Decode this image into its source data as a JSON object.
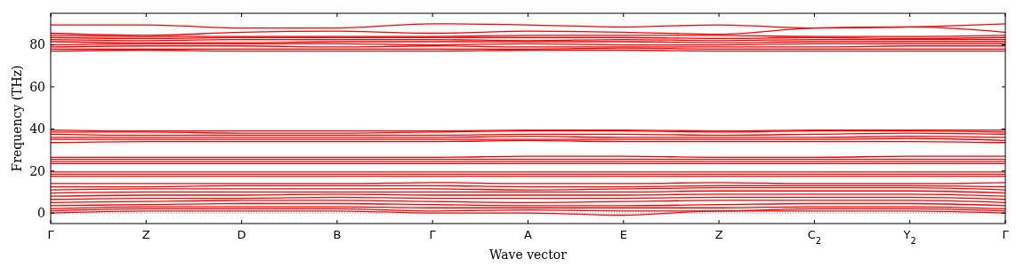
{
  "chart_data": {
    "type": "line",
    "xlabel": "Wave vector",
    "ylabel": "Frequency (THz)",
    "ylim": [
      -5,
      95
    ],
    "categories": [
      "Γ",
      "Z",
      "D",
      "B",
      "Γ",
      "A",
      "E",
      "Z",
      "C$_{2}$",
      "Y$_{2}$",
      "Γ"
    ],
    "yticks": [
      0,
      20,
      40,
      60,
      80
    ],
    "marker": "none",
    "line_style": "solid",
    "ref_lines": [
      {
        "axis": "y",
        "value": 0,
        "color": "#6666ff",
        "line_style": "dotted"
      }
    ],
    "series": [
      {
        "color": "#ff0000",
        "values": [
          0,
          1,
          1,
          1,
          0,
          0,
          -1,
          1,
          1,
          1,
          0
        ]
      },
      {
        "color": "#ff0000",
        "values": [
          1,
          2,
          2,
          2,
          1,
          1.5,
          1,
          1,
          2,
          2,
          1
        ]
      },
      {
        "color": "#ff0000",
        "values": [
          2,
          3,
          3,
          3,
          2.5,
          2.5,
          2.5,
          2.5,
          3,
          3,
          2
        ]
      },
      {
        "color": "#ff0000",
        "values": [
          3.5,
          4,
          4.5,
          4.5,
          4,
          3.5,
          3.5,
          4,
          4.5,
          4.5,
          3.5
        ]
      },
      {
        "color": "#ff0000",
        "values": [
          5,
          5.5,
          6,
          6,
          5.5,
          5,
          5.5,
          6,
          6,
          6,
          5
        ]
      },
      {
        "color": "#ff0000",
        "values": [
          6.5,
          7,
          7,
          7.5,
          7,
          7,
          7,
          7.5,
          7.5,
          7.5,
          6.5
        ]
      },
      {
        "color": "#ff0000",
        "values": [
          8,
          8.5,
          8.5,
          9,
          8.5,
          8.5,
          8.5,
          9,
          9,
          9,
          8
        ]
      },
      {
        "color": "#ff0000",
        "values": [
          9.5,
          10,
          10,
          10,
          10,
          10,
          10,
          10.5,
          10.5,
          10.5,
          9.5
        ]
      },
      {
        "color": "#ff0000",
        "values": [
          11,
          11.5,
          11.5,
          11.5,
          11.5,
          11,
          11.5,
          12,
          12,
          12,
          11
        ]
      },
      {
        "color": "#ff0000",
        "values": [
          12.5,
          12.5,
          13,
          13,
          13,
          12.5,
          12.5,
          13,
          13,
          13,
          12.5
        ]
      },
      {
        "color": "#ff0000",
        "values": [
          14,
          14,
          14,
          14,
          14.5,
          14,
          14,
          14.5,
          14,
          14,
          14.5
        ]
      },
      {
        "color": "#ff0000",
        "values": [
          17.5,
          17.5,
          17.5,
          17.5,
          17.5,
          17.5,
          17.5,
          17.5,
          17.5,
          17.5,
          17.5
        ]
      },
      {
        "color": "#ff0000",
        "values": [
          18.5,
          18.5,
          18.5,
          18.5,
          18.5,
          18.5,
          18.5,
          18.5,
          18.5,
          18.5,
          18.5
        ]
      },
      {
        "color": "#ff0000",
        "values": [
          19.5,
          19.5,
          19.5,
          19.5,
          19.5,
          19.5,
          19.5,
          19.5,
          19.5,
          19.5,
          19.5
        ]
      },
      {
        "color": "#ff0000",
        "values": [
          23.5,
          23.5,
          23.5,
          23.5,
          23.5,
          23.5,
          23.5,
          23.5,
          23.5,
          23.5,
          23.5
        ]
      },
      {
        "color": "#ff0000",
        "values": [
          24.5,
          24.5,
          24.5,
          24.5,
          24.5,
          24.5,
          24.5,
          24.5,
          24.5,
          24.5,
          24.5
        ]
      },
      {
        "color": "#ff0000",
        "values": [
          25.5,
          25.5,
          25.5,
          25.5,
          25.5,
          25.5,
          25.5,
          25.5,
          25.5,
          25.5,
          25.5
        ]
      },
      {
        "color": "#ff0000",
        "values": [
          26.5,
          26.5,
          26.5,
          26.5,
          26.5,
          27,
          27,
          26.5,
          26.5,
          27,
          27
        ]
      },
      {
        "color": "#ff0000",
        "values": [
          33.5,
          34,
          34,
          34,
          34,
          34.5,
          34,
          34,
          34,
          34,
          33.5
        ]
      },
      {
        "color": "#ff0000",
        "values": [
          35,
          35,
          35,
          35,
          35,
          35,
          35,
          35,
          35,
          35.5,
          34.5
        ]
      },
      {
        "color": "#ff0000",
        "values": [
          36,
          36,
          36,
          36,
          36,
          36.5,
          36,
          36,
          36,
          36.5,
          36
        ]
      },
      {
        "color": "#ff0000",
        "values": [
          37.5,
          37,
          37,
          37,
          37,
          37.5,
          37.5,
          37,
          37.5,
          38,
          37.5
        ]
      },
      {
        "color": "#ff0000",
        "values": [
          38.5,
          38.5,
          38,
          38,
          38.5,
          39,
          39,
          38.5,
          39,
          39,
          38.5
        ]
      },
      {
        "color": "#ff0000",
        "values": [
          39.5,
          39,
          39,
          39,
          39,
          39.5,
          39.5,
          39,
          39.5,
          39.5,
          39.5
        ]
      },
      {
        "color": "#ff0000",
        "values": [
          77,
          77.5,
          77,
          77,
          77,
          77.5,
          77.5,
          77,
          77,
          77,
          77
        ]
      },
      {
        "color": "#ff0000",
        "values": [
          78,
          78,
          78,
          78,
          78,
          78,
          78.5,
          78,
          78,
          78,
          78
        ]
      },
      {
        "color": "#ff0000",
        "values": [
          79,
          79.5,
          79.5,
          79,
          79.5,
          79,
          79,
          79,
          79,
          79.5,
          79.5
        ]
      },
      {
        "color": "#ff0000",
        "values": [
          80,
          80.5,
          80.5,
          80.5,
          80,
          80.5,
          80,
          80,
          80.5,
          80.5,
          80.5
        ]
      },
      {
        "color": "#ff0000",
        "values": [
          81.5,
          81,
          81,
          81.5,
          81.5,
          81.5,
          81.5,
          81,
          81.5,
          81.5,
          81.5
        ]
      },
      {
        "color": "#ff0000",
        "values": [
          82.5,
          82,
          82.5,
          82.5,
          82.5,
          82,
          82.5,
          82,
          82.5,
          82.5,
          82.5
        ]
      },
      {
        "color": "#ff0000",
        "values": [
          83.5,
          83,
          83.5,
          83.5,
          83.5,
          83.5,
          83.5,
          83,
          83.5,
          83,
          83.5
        ]
      },
      {
        "color": "#ff0000",
        "values": [
          84.5,
          84,
          84,
          84,
          84,
          84.5,
          84.5,
          84.5,
          84,
          84,
          84.5
        ]
      },
      {
        "color": "#ff0000",
        "values": [
          85.5,
          84.5,
          86,
          86.5,
          85.5,
          86.5,
          86,
          85,
          88,
          88.5,
          86
        ]
      },
      {
        "color": "#ff0000",
        "values": [
          89.5,
          89.5,
          88,
          88,
          90,
          89.5,
          88.5,
          89.5,
          88,
          88.5,
          90
        ]
      }
    ]
  }
}
